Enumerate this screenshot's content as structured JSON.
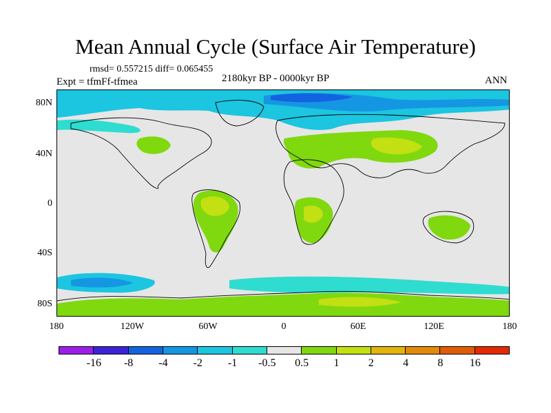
{
  "title": "Mean Annual Cycle (Surface Air Temperature)",
  "stats": "rmsd= 0.557215 diff= 0.065455",
  "experiment": "Expt = tfmFf-tfmea",
  "period": "2180kyr BP - 0000kyr BP",
  "season": "ANN",
  "lat_labels": [
    "80N",
    "40N",
    "0",
    "40S",
    "80S"
  ],
  "lon_labels": [
    "180",
    "120W",
    "60W",
    "0",
    "60E",
    "120E",
    "180"
  ],
  "colorbar": {
    "colors": [
      "#9b1fe8",
      "#3a24d6",
      "#1363e0",
      "#1596e2",
      "#1cc5e0",
      "#2fdcd0",
      "#e6e6e6",
      "#80d80f",
      "#c2e012",
      "#e2b40c",
      "#e28a0a",
      "#e05c06",
      "#e22a04"
    ],
    "labels": [
      "-16",
      "-8",
      "-4",
      "-2",
      "-1",
      "-0.5",
      "0.5",
      "1",
      "2",
      "4",
      "8",
      "16"
    ]
  }
}
